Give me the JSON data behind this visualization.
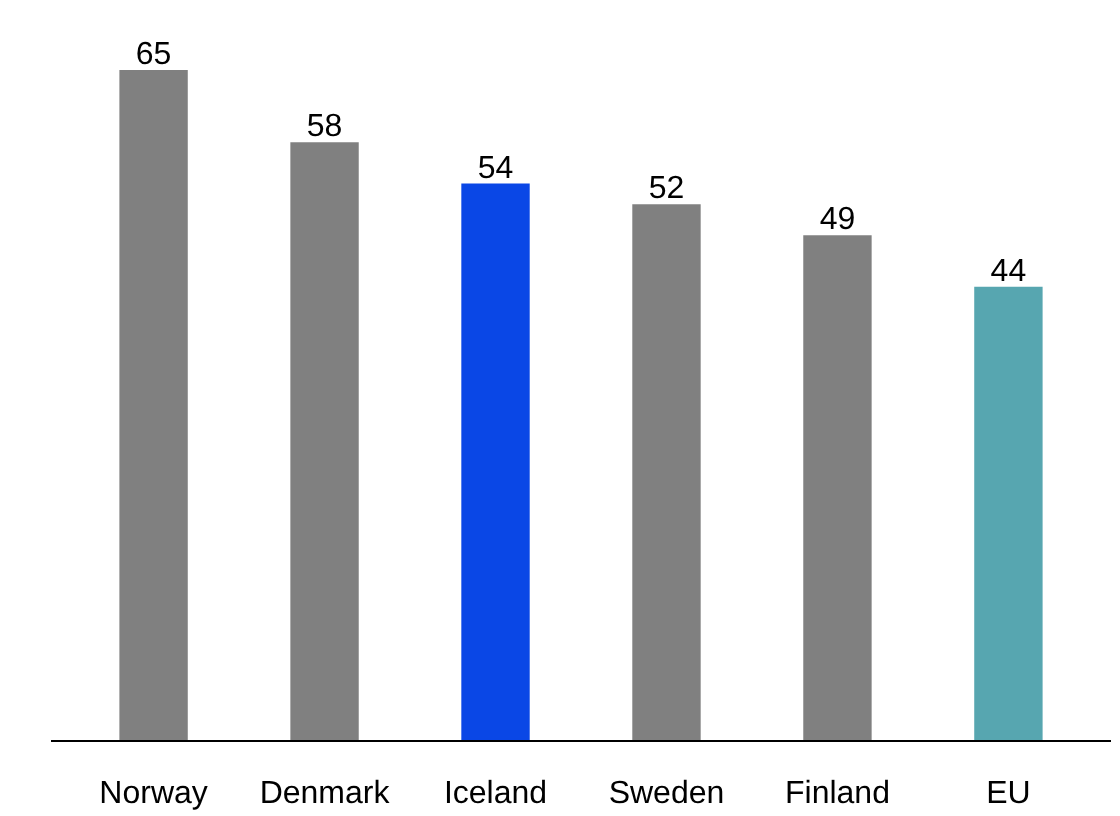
{
  "chart_data": {
    "type": "bar",
    "categories": [
      "Norway",
      "Denmark",
      "Iceland",
      "Sweden",
      "Finland",
      "EU"
    ],
    "values": [
      65,
      58,
      54,
      52,
      49,
      44
    ],
    "colors": [
      "#808080",
      "#808080",
      "#0a47e6",
      "#808080",
      "#808080",
      "#57a6b0"
    ],
    "data_labels": true
  }
}
